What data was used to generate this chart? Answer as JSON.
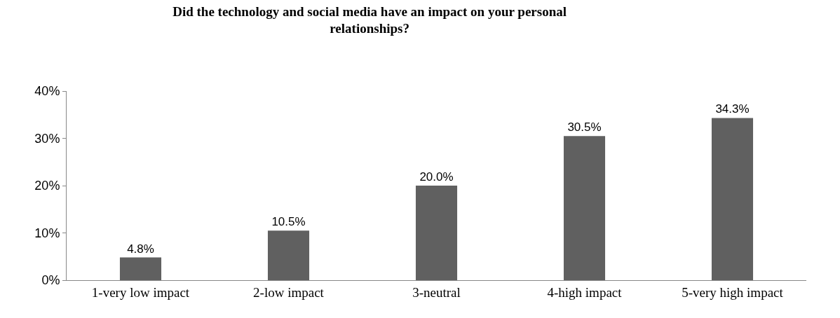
{
  "chart_data": {
    "type": "bar",
    "title": "Did the technology and social media have an impact on your personal relationships?",
    "categories": [
      "1-very low impact",
      "2-low impact",
      "3-neutral",
      "4-high impact",
      "5-very high impact"
    ],
    "values": [
      4.8,
      10.5,
      20.0,
      30.5,
      34.3
    ],
    "value_labels": [
      "4.8%",
      "10.5%",
      "20.0%",
      "30.5%",
      "34.3%"
    ],
    "color": "#606060",
    "ylim": [
      0,
      40
    ],
    "yticks": [
      {
        "value": 0,
        "label": "0%"
      },
      {
        "value": 10,
        "label": "10%"
      },
      {
        "value": 20,
        "label": "20%"
      },
      {
        "value": 30,
        "label": "30%"
      },
      {
        "value": 40,
        "label": "40%"
      }
    ],
    "grid": false,
    "legend": false
  }
}
